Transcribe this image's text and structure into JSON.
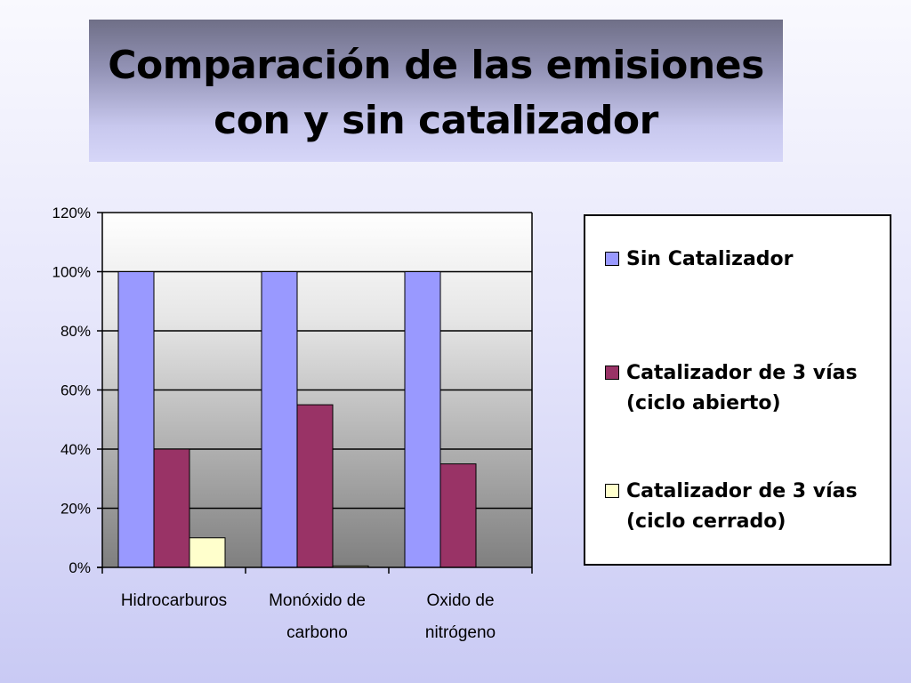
{
  "title": {
    "line1": "Comparación de las emisiones",
    "line2": "con y sin catalizador"
  },
  "chart_data": {
    "type": "bar",
    "title": "Comparación de las emisiones con y sin catalizador",
    "xlabel": "",
    "ylabel": "",
    "ylim": [
      0,
      1.2
    ],
    "y_ticks": [
      "0%",
      "20%",
      "40%",
      "60%",
      "80%",
      "100%",
      "120%"
    ],
    "y_tick_values": [
      0,
      0.2,
      0.4,
      0.6,
      0.8,
      1.0,
      1.2
    ],
    "grid": true,
    "legend_position": "right",
    "categories": [
      [
        "Hidrocarburos"
      ],
      [
        "Monóxido de",
        "carbono"
      ],
      [
        "Oxido de",
        "nitrógeno"
      ]
    ],
    "series": [
      {
        "name": "Sin Catalizador",
        "color": "#9999ff",
        "values": [
          1.0,
          1.0,
          1.0
        ]
      },
      {
        "name": "Catalizador de 3 vías\n(ciclo abierto)",
        "color": "#993366",
        "values": [
          0.4,
          0.55,
          0.35
        ]
      },
      {
        "name": "Catalizador de 3 vías\n(ciclo cerrado)",
        "color": "#ffffcc",
        "values": [
          0.1,
          0.005,
          0
        ]
      }
    ]
  }
}
